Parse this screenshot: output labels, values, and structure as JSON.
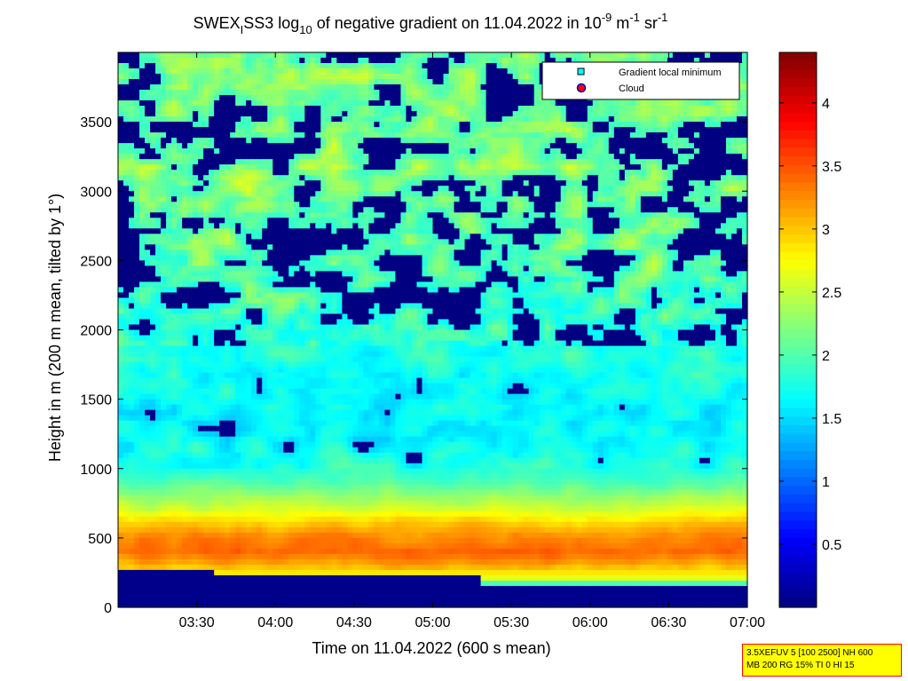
{
  "title": {
    "prefix": "SWEX",
    "prefix_sub": "I",
    "mid1": "SS3 log",
    "log_sub": "10",
    "mid2": " of negative gradient on 11.04.2022 in 10",
    "exp1": "-9",
    "unit1": " m",
    "exp2": "-1",
    "unit2": " sr",
    "exp3": "-1"
  },
  "chart_data": {
    "type": "heatmap",
    "xlabel": "Time on 11.04.2022 (600 s mean)",
    "ylabel": "Height in m (200 m mean, tilted by 1°)",
    "x_ticks": [
      "03:30",
      "04:00",
      "04:30",
      "05:00",
      "05:30",
      "06:00",
      "06:30",
      "07:00"
    ],
    "x_tick_values": [
      3.5,
      4.0,
      4.5,
      5.0,
      5.5,
      6.0,
      6.5,
      7.0
    ],
    "xlim": [
      3.0,
      7.0
    ],
    "y_ticks": [
      "0",
      "500",
      "1000",
      "1500",
      "2000",
      "2500",
      "3000",
      "3500"
    ],
    "y_tick_values": [
      0,
      500,
      1000,
      1500,
      2000,
      2500,
      3000,
      3500
    ],
    "ylim": [
      0,
      4000
    ],
    "colorbar": {
      "ticks": [
        "0.5",
        "1",
        "1.5",
        "2",
        "2.5",
        "3",
        "3.5",
        "4"
      ],
      "tick_values": [
        0.5,
        1.0,
        1.5,
        2.0,
        2.5,
        3.0,
        3.5,
        4.0
      ],
      "range": [
        0.0,
        4.4
      ],
      "colormap": "jet"
    },
    "legend": {
      "placement": "top-right",
      "items": [
        {
          "label": "Gradient local minimum",
          "marker": "square",
          "color": "#00ffff"
        },
        {
          "label": "Cloud",
          "marker": "circle",
          "color": "#ff0000"
        }
      ]
    },
    "profile_approx": {
      "heights": [
        0,
        100,
        200,
        300,
        400,
        500,
        600,
        700,
        800,
        900,
        1000,
        1200,
        1400,
        1600,
        1800,
        2000,
        2500,
        3000,
        3500,
        3900
      ],
      "values": [
        0.2,
        0.3,
        2.6,
        3.1,
        3.4,
        3.3,
        3.0,
        2.6,
        2.3,
        2.0,
        1.8,
        1.6,
        1.6,
        1.7,
        1.8,
        1.7,
        1.9,
        2.0,
        2.0,
        2.0
      ]
    }
  },
  "settings": {
    "line1": "3.5XEFUV 5 [100 2500] NH 600",
    "line2": "MB 200 RG 15% TI 0 HI 15"
  }
}
